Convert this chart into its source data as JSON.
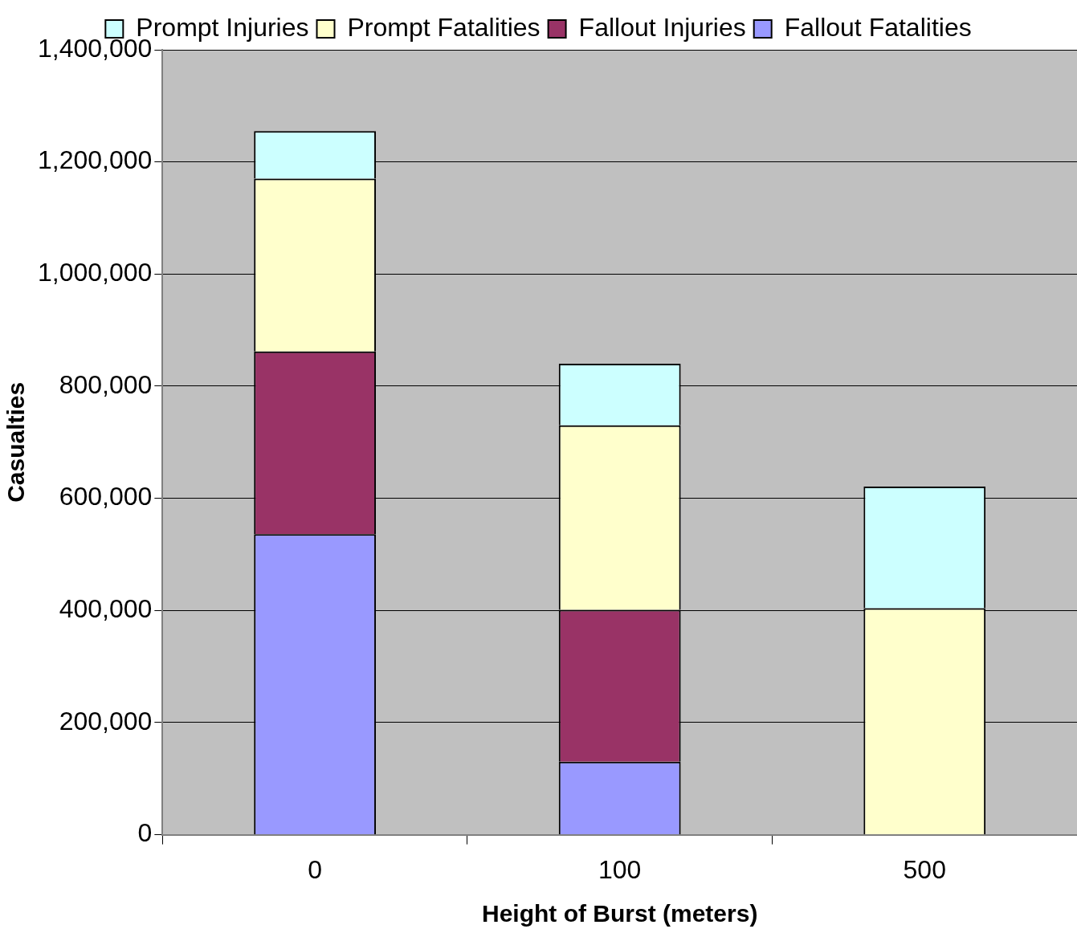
{
  "chart_data": {
    "type": "bar",
    "stacked": true,
    "xlabel": "Height of Burst (meters)",
    "ylabel": "Casualties",
    "categories": [
      "0",
      "100",
      "500"
    ],
    "series": [
      {
        "name": "Fallout Fatalities",
        "color": "#9999ff",
        "values": [
          536000,
          130000,
          0
        ]
      },
      {
        "name": "Fallout Injuries",
        "color": "#993366",
        "values": [
          326000,
          271000,
          0
        ]
      },
      {
        "name": "Prompt Fatalities",
        "color": "#ffffcc",
        "values": [
          308000,
          329000,
          404000
        ]
      },
      {
        "name": "Prompt Injuries",
        "color": "#ccffff",
        "values": [
          85000,
          110000,
          217000
        ]
      }
    ],
    "ylim": [
      0,
      1400000
    ],
    "yticks": [
      0,
      {
        "value": 200000,
        "label": "200,000"
      },
      {
        "value": 400000,
        "label": "400,000"
      },
      {
        "value": 600000,
        "label": "600,000"
      },
      {
        "value": 800000,
        "label": "800,000"
      },
      {
        "value": 1000000,
        "label": "1,000,000"
      },
      {
        "value": 1200000,
        "label": "1,200,000"
      },
      {
        "value": 1400000,
        "label": "1,400,000"
      }
    ],
    "grid": "y",
    "legend": "top"
  }
}
